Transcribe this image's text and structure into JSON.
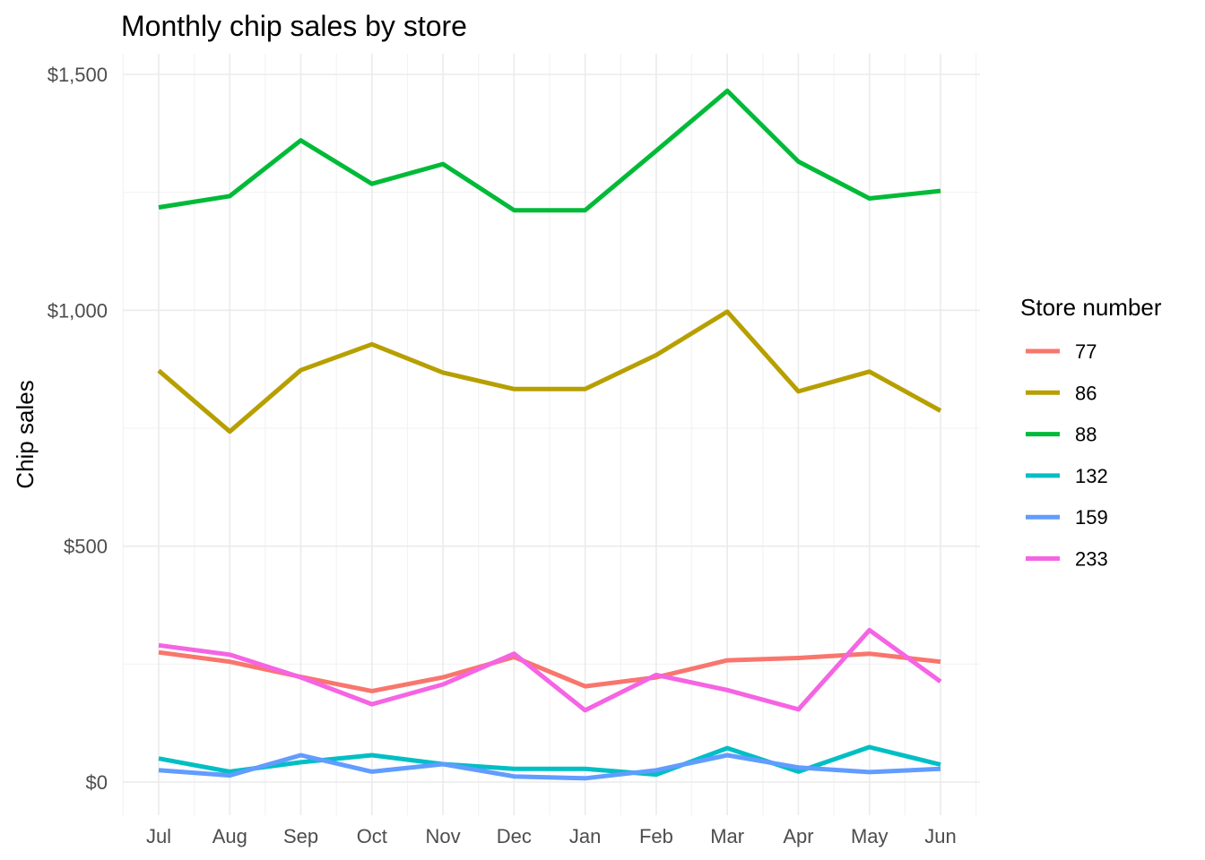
{
  "chart_data": {
    "type": "line",
    "title": "Monthly chip sales by store",
    "xlabel": "",
    "ylabel": "Chip sales",
    "categories": [
      "Jul",
      "Aug",
      "Sep",
      "Oct",
      "Nov",
      "Dec",
      "Jan",
      "Feb",
      "Mar",
      "Apr",
      "May",
      "Jun"
    ],
    "ylim": [
      -70,
      1560
    ],
    "yticks": [
      0,
      500,
      1000,
      1500
    ],
    "ytick_labels": [
      "$0",
      "$500",
      "$1,000",
      "$1,500"
    ],
    "grid": true,
    "legend": {
      "title": "Store number",
      "position": "right"
    },
    "series": [
      {
        "name": "77",
        "color": "#F8766D",
        "values": [
          275,
          255,
          223,
          193,
          222,
          265,
          203,
          222,
          258,
          263,
          272,
          255
        ]
      },
      {
        "name": "86",
        "color": "#B79F00",
        "values": [
          872,
          743,
          873,
          928,
          868,
          833,
          833,
          905,
          997,
          828,
          870,
          787
        ]
      },
      {
        "name": "88",
        "color": "#00BA38",
        "values": [
          1218,
          1242,
          1360,
          1268,
          1310,
          1212,
          1212,
          1338,
          1465,
          1315,
          1237,
          1253
        ]
      },
      {
        "name": "132",
        "color": "#00BFC4",
        "values": [
          50,
          22,
          42,
          57,
          38,
          28,
          28,
          16,
          72,
          22,
          74,
          37
        ]
      },
      {
        "name": "159",
        "color": "#619CFF",
        "values": [
          25,
          14,
          57,
          22,
          38,
          12,
          8,
          25,
          57,
          31,
          21,
          28
        ]
      },
      {
        "name": "233",
        "color": "#F564E3",
        "values": [
          290,
          270,
          222,
          165,
          207,
          272,
          152,
          227,
          195,
          154,
          322,
          213
        ]
      }
    ]
  }
}
